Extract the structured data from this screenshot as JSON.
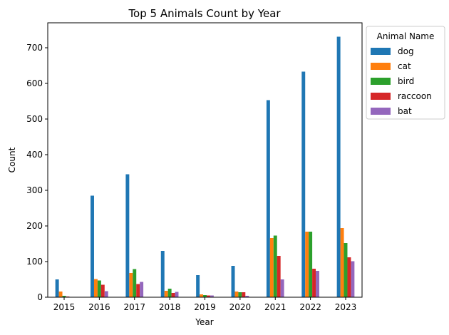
{
  "chart_data": {
    "type": "bar",
    "title": "Top 5 Animals Count by Year",
    "xlabel": "Year",
    "ylabel": "Count",
    "categories": [
      "2015",
      "2016",
      "2017",
      "2018",
      "2019",
      "2020",
      "2021",
      "2022",
      "2023"
    ],
    "ylim": [
      0,
      770
    ],
    "yticks": [
      0,
      100,
      200,
      300,
      400,
      500,
      600,
      700
    ],
    "grid": false,
    "legend": {
      "title": "Animal Name",
      "placement": "outside-right-top"
    },
    "series": [
      {
        "name": "dog",
        "color": "#1f77b4",
        "values": [
          50,
          285,
          345,
          130,
          62,
          88,
          553,
          633,
          731
        ]
      },
      {
        "name": "cat",
        "color": "#ff7f0e",
        "values": [
          16,
          51,
          68,
          18,
          8,
          16,
          166,
          184,
          194
        ]
      },
      {
        "name": "bird",
        "color": "#2ca02c",
        "values": [
          4,
          47,
          79,
          24,
          6,
          14,
          173,
          184,
          152
        ]
      },
      {
        "name": "raccoon",
        "color": "#d62728",
        "values": [
          2,
          35,
          37,
          12,
          5,
          14,
          116,
          80,
          112
        ]
      },
      {
        "name": "bat",
        "color": "#9467bd",
        "values": [
          1,
          17,
          43,
          15,
          5,
          4,
          50,
          74,
          101
        ]
      }
    ]
  }
}
